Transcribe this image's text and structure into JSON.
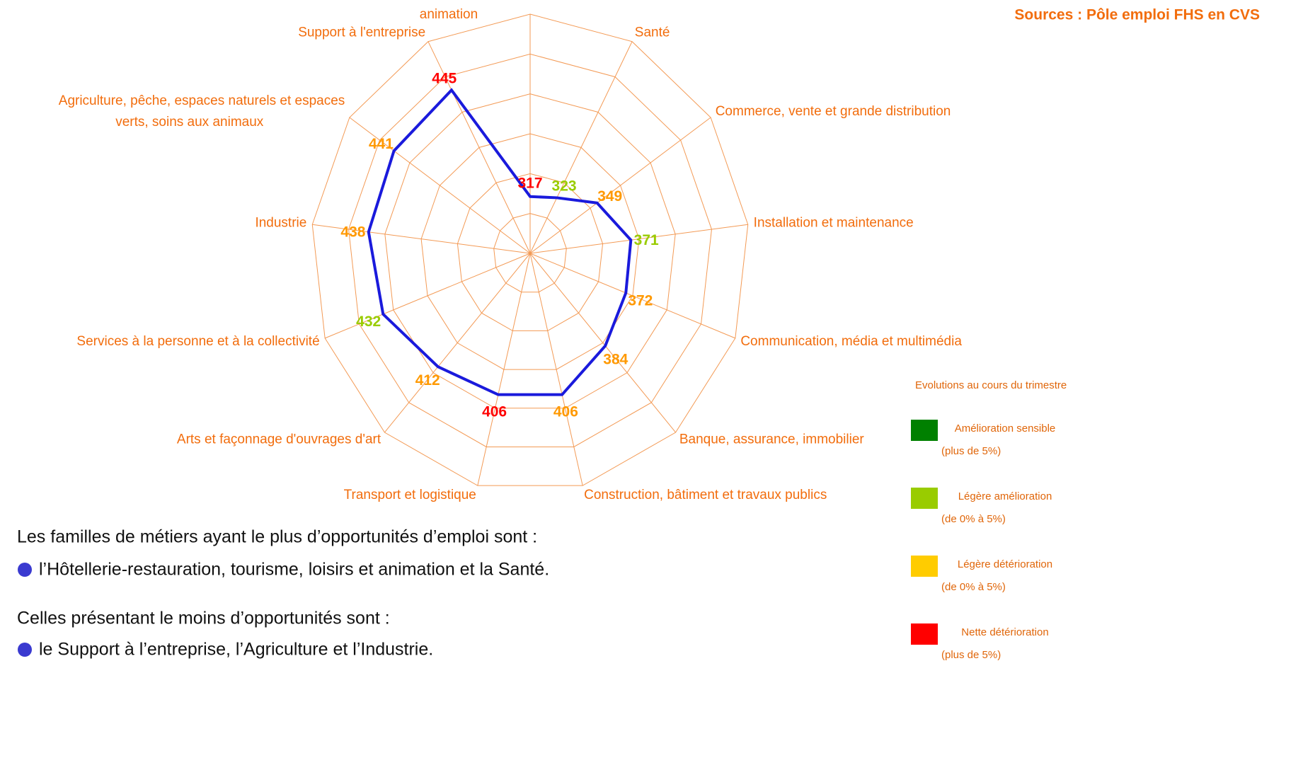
{
  "chart_data": {
    "type": "radar",
    "source": "Sources : Pôle emploi FHS en CVS",
    "categories": [
      "Hôtellerie-restauration, tourisme, loisirs et animation",
      "Santé",
      "Commerce, vente et grande distribution",
      "Installation et maintenance",
      "Communication, média et multimédia",
      "Banque, assurance, immobilier",
      "Construction, bâtiment et travaux publics",
      "Transport et logistique",
      "Arts et façonnage d'ouvrages d'art",
      "Services à la personne et à la collectivité",
      "Industrie",
      "Agriculture, pêche, espaces naturels et espaces verts, soins aux animaux",
      "Support à l'entreprise"
    ],
    "values": [
      317,
      323,
      349,
      371,
      372,
      384,
      406,
      406,
      412,
      432,
      438,
      441,
      445
    ],
    "value_colors": [
      "#ff0000",
      "#99cc00",
      "#ff9900",
      "#99cc00",
      "#ff9900",
      "#ff9900",
      "#ff9900",
      "#ff0000",
      "#ff9900",
      "#99cc00",
      "#ff9900",
      "#ff9900",
      "#ff0000"
    ],
    "color": "#1a1adc",
    "rlim": [
      260,
      500
    ],
    "rticks": [
      260,
      300,
      340,
      380,
      420,
      460,
      500
    ],
    "grid": true,
    "legend": {
      "title": "Evolutions au cours du trimestre",
      "items": [
        {
          "label": "Amélioration sensible",
          "range": "(plus de 5%)",
          "color": "#008000"
        },
        {
          "label": "Légère amélioration",
          "range": "(de 0% à 5%)",
          "color": "#99cc00"
        },
        {
          "label": "Légère détérioration",
          "range": "(de 0% à 5%)",
          "color": "#ffcc00"
        },
        {
          "label": "Nette détérioration",
          "range": "(plus de 5%)",
          "color": "#ff0000"
        }
      ]
    }
  },
  "text": {
    "intro_best": "Les familles de métiers ayant le plus d’opportunités d’emploi sont :",
    "best": "l’Hôtellerie-restauration, tourisme, loisirs et animation et la Santé.",
    "intro_worst": "Celles présentant le moins d’opportunités sont :",
    "worst": "le Support à l’entreprise, l’Agriculture et l’Industrie."
  }
}
